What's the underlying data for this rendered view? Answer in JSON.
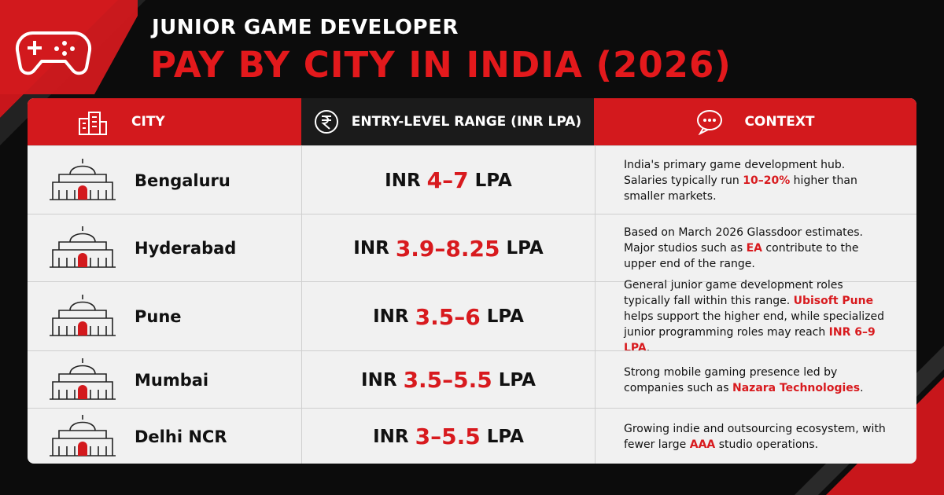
{
  "header": {
    "title_line1": "JUNIOR GAME DEVELOPER",
    "title_line2": "PAY BY CITY IN INDIA (2026)"
  },
  "table": {
    "headers": [
      "CITY",
      "ENTRY-LEVEL RANGE (INR LPA)",
      "CONTEXT"
    ],
    "rows": [
      {
        "city": "Bengaluru",
        "range": [
          "INR",
          "4–7",
          "LPA"
        ],
        "context": [
          "India's primary game development hub. Salaries typically run ",
          "10–20%",
          " higher than smaller markets."
        ]
      },
      {
        "city": "Hyderabad",
        "range": [
          "INR",
          "3.9–8.25",
          "LPA"
        ],
        "context": [
          "Based on March 2026 Glassdoor estimates. Major studios such as ",
          "EA",
          " contribute to the upper end of the range."
        ]
      },
      {
        "city": "Pune",
        "range": [
          "INR",
          "3.5–6",
          "LPA"
        ],
        "context": [
          "General junior game development roles typically fall within this range. ",
          "Ubisoft Pune",
          " helps support the higher end, while specialized junior programming roles may reach ",
          "INR 6–9 LPA",
          "."
        ]
      },
      {
        "city": "Mumbai",
        "range": [
          "INR",
          "3.5–5.5",
          "LPA"
        ],
        "context": [
          "Strong mobile gaming presence led by companies such as ",
          "Nazara Technologies",
          "."
        ]
      },
      {
        "city": "Delhi NCR",
        "range": [
          "INR",
          "3–5.5",
          "LPA"
        ],
        "context": [
          "Growing indie and outsourcing ecosystem, with fewer large ",
          "AAA",
          " studio operations."
        ]
      }
    ]
  }
}
